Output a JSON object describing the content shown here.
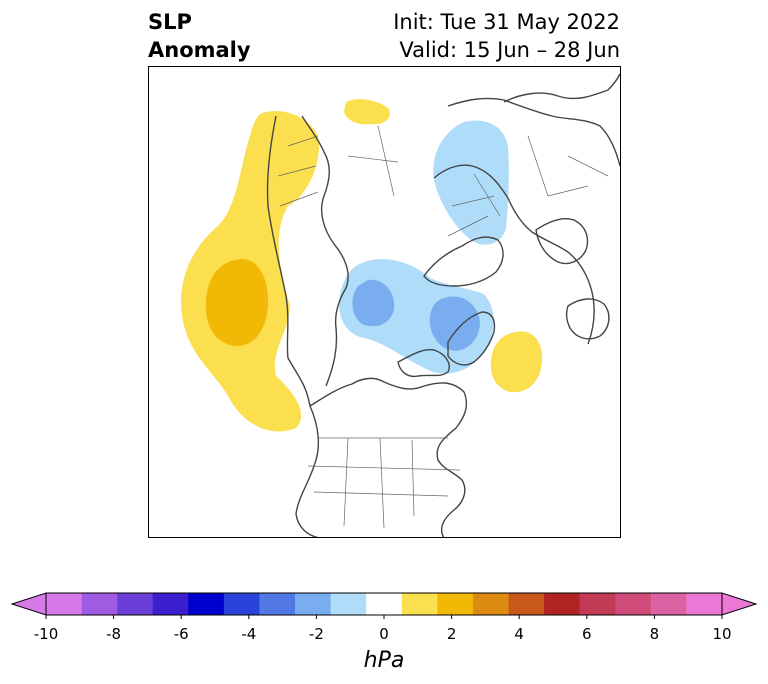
{
  "title": {
    "line1": "SLP",
    "line2": "Anomaly"
  },
  "meta": {
    "init": "Init: Tue 31 May 2022",
    "valid": "Valid: 15 Jun – 28 Jun"
  },
  "colorbar": {
    "unit": "hPa",
    "ticks": [
      "-10",
      "-8",
      "-6",
      "-4",
      "-2",
      "0",
      "2",
      "4",
      "6",
      "8",
      "10"
    ],
    "colors": [
      "#d77ae8",
      "#9f5be2",
      "#6a3fd8",
      "#3b20cf",
      "#0000cc",
      "#2843d9",
      "#5178e3",
      "#79adef",
      "#aedcf9",
      "#ffffff",
      "#fbdf4f",
      "#f1b905",
      "#de8b11",
      "#c7591b",
      "#b02524",
      "#c23b55",
      "#cf4b79",
      "#dc62a4",
      "#ea78d4"
    ],
    "under_color": "#d77ae8",
    "over_color": "#ea78d4"
  },
  "colors": {
    "yellow": "#fbdf4f",
    "orange": "#f1b905",
    "light_blue": "#aedcf9",
    "mid_blue": "#79adef",
    "coast": "#444444"
  }
}
